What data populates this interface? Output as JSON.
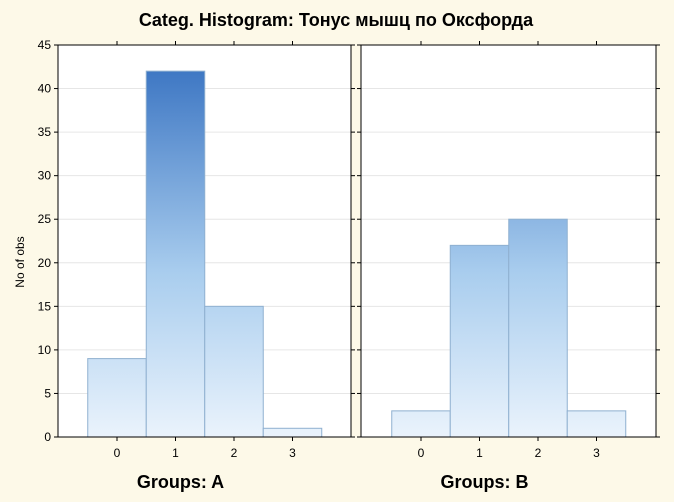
{
  "colors": {
    "background": "#fdf9e8",
    "panel": "#ffffff",
    "bar_dark": "#3f78c4",
    "bar_mid": "#a9cdee",
    "bar_light": "#eaf3fc",
    "bar_edge": "#8fb0d0"
  },
  "chart_data": {
    "type": "bar",
    "title": "Categ. Histogram: Тонус мышц по Оксфорда",
    "ylabel": "No of obs",
    "ylim": [
      0,
      45
    ],
    "yticks": [
      "0",
      "5",
      "10",
      "15",
      "20",
      "25",
      "30",
      "35",
      "40",
      "45"
    ],
    "grid": true,
    "panels": [
      {
        "label": "Groups: A",
        "categories": [
          "0",
          "1",
          "2",
          "3"
        ],
        "values": [
          9,
          42,
          15,
          1
        ]
      },
      {
        "label": "Groups: B",
        "categories": [
          "0",
          "1",
          "2",
          "3"
        ],
        "values": [
          3,
          22,
          25,
          3
        ]
      }
    ]
  }
}
